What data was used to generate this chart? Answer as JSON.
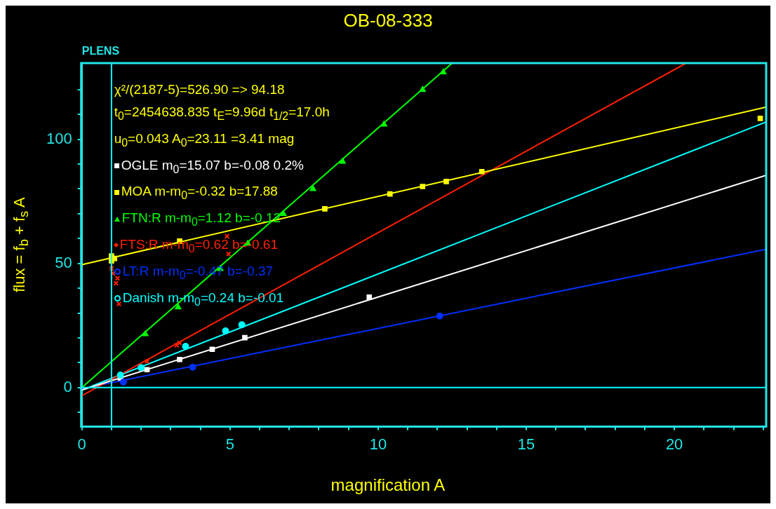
{
  "chart_data": {
    "type": "scatter",
    "title": "OB-08-333",
    "xlabel": "magnification A",
    "ylabel": "flux = f$_{b}$ + f$_{s}$ A",
    "annotations": [
      "PLENS",
      "χ²/(2187-5)=526.90 => 94.18",
      "t$_{0}$=2454638.835 t$_{E}$=9.96d  t$_{1/2}$=17.0h",
      "u$_{0}$=0.043 A$_{0}$=23.11 =3.41 mag"
    ],
    "xlim": [
      0,
      23.1
    ],
    "ylim": [
      -15.5,
      130.7
    ],
    "xticks": [
      0,
      {
        "value": 1,
        "label": null
      },
      {
        "value": 2,
        "label": null
      },
      {
        "value": 3,
        "label": null
      },
      {
        "value": 4,
        "label": null
      },
      5,
      {
        "value": 6,
        "label": null
      },
      {
        "value": 7,
        "label": null
      },
      {
        "value": 8,
        "label": null
      },
      {
        "value": 9,
        "label": null
      },
      10,
      {
        "value": 11,
        "label": null
      },
      {
        "value": 12,
        "label": null
      },
      {
        "value": 13,
        "label": null
      },
      {
        "value": 14,
        "label": null
      },
      15,
      {
        "value": 16,
        "label": null
      },
      {
        "value": 17,
        "label": null
      },
      {
        "value": 18,
        "label": null
      },
      {
        "value": 19,
        "label": null
      },
      20,
      {
        "value": 21,
        "label": null
      },
      {
        "value": 22,
        "label": null
      },
      {
        "value": 23,
        "label": null
      }
    ],
    "yticks": [
      {
        "value": -10,
        "label": null
      },
      0,
      {
        "value": 10,
        "label": null
      },
      {
        "value": 20,
        "label": null
      },
      {
        "value": 30,
        "label": null
      },
      {
        "value": 40,
        "label": null
      },
      50,
      {
        "value": 60,
        "label": null
      },
      {
        "value": 70,
        "label": null
      },
      {
        "value": 80,
        "label": null
      },
      {
        "value": 90,
        "label": null
      },
      100,
      {
        "value": 110,
        "label": null
      },
      {
        "value": 120,
        "label": null
      }
    ],
    "grid": false,
    "legend": "top left",
    "ref_lines": [
      {
        "axis": "x",
        "value": 1,
        "color": "#00ffff"
      },
      {
        "axis": "y",
        "value": 0,
        "color": "#00ffff"
      }
    ],
    "series": [
      {
        "name": "OGLE m$_{0}$=15.07 b=-0.08 0.2%",
        "color": "#ffffff",
        "marker": "square",
        "x": [
          1.3,
          2.2,
          3.3,
          4.4,
          5.5,
          9.7
        ],
        "values": [
          3.8,
          7.2,
          11.3,
          15.4,
          20.1,
          36.4
        ]
      },
      {
        "name": "MOA m-m$_{0}$=-0.32 b=17.88",
        "color": "#ffff00",
        "marker": "square",
        "x": [
          1.0,
          1.0,
          1.1,
          3.3,
          8.2,
          10.4,
          11.5,
          12.3,
          13.5,
          22.9
        ],
        "values": [
          53,
          51,
          52,
          59,
          72,
          78,
          81,
          83,
          87,
          108.4
        ]
      },
      {
        "name": "FTN:R m-m$_{0}$=1.12 b=-0.12",
        "color": "#00ff00",
        "marker": "triangle",
        "x": [
          2.14,
          3.25,
          4.67,
          5.6,
          6.8,
          7.8,
          8.8,
          10.2,
          11.5,
          12.2
        ],
        "values": [
          21.5,
          32.3,
          47.8,
          58,
          70,
          80,
          91,
          106,
          120,
          127
        ]
      },
      {
        "name": "FTS:R m-m$_{0}$=0.62 b=-0.61",
        "color": "#ff2000",
        "marker": "cross",
        "x": [
          1.0,
          1.05,
          1.15,
          1.2,
          1.25,
          2.2,
          3.2,
          3.3,
          4.9,
          4.95
        ],
        "values": [
          48,
          46,
          42,
          44,
          33.7,
          10.5,
          17,
          18,
          60.9,
          53.8
        ]
      },
      {
        "name": "LT:R m-m$_{0}$=-0.47 b=-0.37",
        "color": "#0030ff",
        "marker": "circle",
        "x": [
          1.4,
          3.74,
          12.08
        ],
        "values": [
          2.2,
          8.2,
          28.8
        ]
      },
      {
        "name": "Danish m-m$_{0}$=0.24 b=-0.01",
        "color": "#00ffff",
        "marker": "circle",
        "x": [
          1.3,
          2.0,
          3.5,
          4.85,
          5.4
        ],
        "values": [
          5,
          8,
          16.6,
          22.8,
          25.3
        ]
      },
      {
        "type": "line",
        "color": "#ffffff",
        "x": [
          0,
          23.1
        ],
        "values": [
          -1,
          85.5
        ]
      },
      {
        "type": "line",
        "color": "#ffff00",
        "x": [
          0,
          23.1
        ],
        "values": [
          49.5,
          113
        ]
      },
      {
        "type": "line",
        "color": "#00ff00",
        "x": [
          0,
          12.5
        ],
        "values": [
          0,
          130.7
        ]
      },
      {
        "type": "line",
        "color": "#ff2000",
        "x": [
          0,
          20.4
        ],
        "values": [
          -3.3,
          130.7
        ]
      },
      {
        "type": "line",
        "color": "#0030ff",
        "x": [
          0,
          23.1
        ],
        "values": [
          -0.5,
          55.7
        ]
      },
      {
        "type": "line",
        "color": "#00ffff",
        "x": [
          0,
          23.1
        ],
        "values": [
          -1,
          107
        ]
      }
    ]
  }
}
